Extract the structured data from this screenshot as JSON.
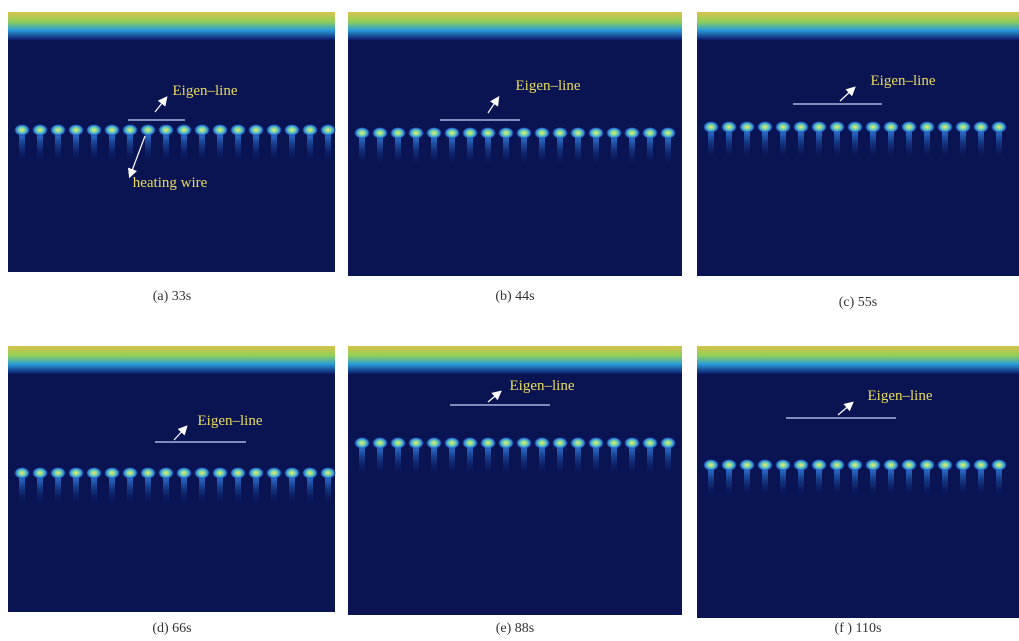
{
  "panels": [
    {
      "caption": "(a) 33s",
      "labels": [
        "Eigen–line",
        "heating wire"
      ]
    },
    {
      "caption": "(b) 44s",
      "labels": [
        "Eigen–line"
      ]
    },
    {
      "caption": "(c) 55s",
      "labels": [
        "Eigen–line"
      ]
    },
    {
      "caption": "(d) 66s",
      "labels": [
        "Eigen–line"
      ]
    },
    {
      "caption": "(e) 88s",
      "labels": [
        "Eigen–line"
      ]
    },
    {
      "caption": "(f ) 110s",
      "labels": [
        "Eigen–line"
      ]
    }
  ]
}
